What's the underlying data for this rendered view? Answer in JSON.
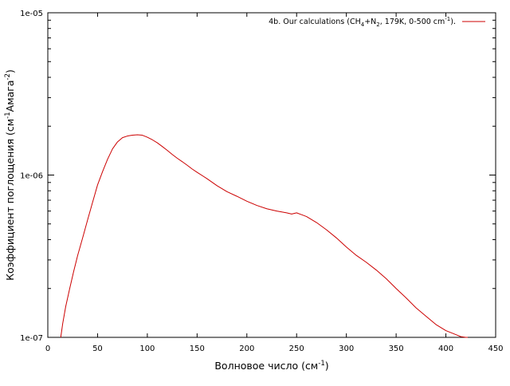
{
  "chart_data": {
    "type": "line",
    "title": "",
    "xlabel": "Волновое число (см-1)",
    "ylabel": "Коэффициент поглощения (см-1Амага-2)",
    "xlabel_parts": {
      "main": "Волновое число (см",
      "sup": "-1",
      "tail": ")"
    },
    "ylabel_parts": {
      "main": "Коэффициент поглощения (см",
      "sup1": "-1",
      "mid": "Амага",
      "sup2": "-2",
      "tail": ")"
    },
    "xlim": [
      0,
      450
    ],
    "ylim": [
      1e-07,
      1e-05
    ],
    "y_scale": "log",
    "grid": false,
    "legend_position": "top-right",
    "x_ticks": [
      0,
      50,
      100,
      150,
      200,
      250,
      300,
      350,
      400,
      450
    ],
    "x_tick_labels": [
      "0",
      "50",
      "100",
      "150",
      "200",
      "250",
      "300",
      "350",
      "400",
      "450"
    ],
    "y_ticks": [
      1e-07,
      1e-06,
      1e-05
    ],
    "y_tick_labels": [
      "1e-07",
      "1e-06",
      "1e-05"
    ],
    "series": [
      {
        "name": "4b. Our  calculations (CH4+N2, 179K, 0-500 cm-1).",
        "name_parts": {
          "p1": "4b. Our  calculations (CH",
          "s1": "4",
          "p2": "+N",
          "s2": "2",
          "p3": ", 179K, 0-500 cm",
          "sup": "-1",
          "p4": ")."
        },
        "color": "#cc0000",
        "x": [
          13,
          15,
          18,
          22,
          26,
          30,
          35,
          40,
          45,
          50,
          55,
          60,
          65,
          70,
          75,
          80,
          85,
          90,
          95,
          100,
          105,
          110,
          115,
          120,
          125,
          130,
          135,
          140,
          145,
          150,
          160,
          170,
          180,
          190,
          200,
          210,
          220,
          230,
          240,
          245,
          250,
          255,
          260,
          270,
          280,
          290,
          300,
          310,
          320,
          330,
          340,
          350,
          360,
          370,
          380,
          390,
          400,
          410,
          415,
          420,
          422
        ],
        "y": [
          1e-07,
          1.22e-07,
          1.55e-07,
          2e-07,
          2.55e-07,
          3.2e-07,
          4.1e-07,
          5.3e-07,
          6.8e-07,
          8.7e-07,
          1.05e-06,
          1.25e-06,
          1.45e-06,
          1.6e-06,
          1.7e-06,
          1.74e-06,
          1.76e-06,
          1.77e-06,
          1.76e-06,
          1.71e-06,
          1.65e-06,
          1.58e-06,
          1.5e-06,
          1.42e-06,
          1.34e-06,
          1.27e-06,
          1.21e-06,
          1.15e-06,
          1.09e-06,
          1.04e-06,
          9.5e-07,
          8.6e-07,
          7.9e-07,
          7.4e-07,
          6.9e-07,
          6.5e-07,
          6.2e-07,
          6e-07,
          5.85e-07,
          5.75e-07,
          5.85e-07,
          5.7e-07,
          5.55e-07,
          5.1e-07,
          4.6e-07,
          4.1e-07,
          3.6e-07,
          3.2e-07,
          2.9e-07,
          2.6e-07,
          2.3e-07,
          2e-07,
          1.75e-07,
          1.52e-07,
          1.35e-07,
          1.2e-07,
          1.1e-07,
          1.04e-07,
          1.01e-07,
          1e-07,
          1e-07
        ]
      }
    ]
  }
}
